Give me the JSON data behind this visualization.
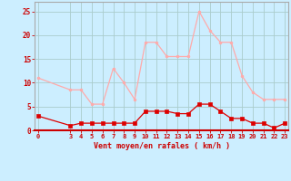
{
  "hours": [
    0,
    3,
    4,
    5,
    6,
    7,
    8,
    9,
    10,
    11,
    12,
    13,
    14,
    15,
    16,
    17,
    18,
    19,
    20,
    21,
    22,
    23
  ],
  "wind_avg": [
    3,
    1,
    1.5,
    1.5,
    1.5,
    1.5,
    1.5,
    1.5,
    4,
    4,
    4,
    3.5,
    3.5,
    5.5,
    5.5,
    4,
    2.5,
    2.5,
    1.5,
    1.5,
    0.5,
    1.5
  ],
  "wind_gust": [
    11,
    8.5,
    8.5,
    5.5,
    5.5,
    13,
    10,
    6.5,
    18.5,
    18.5,
    15.5,
    15.5,
    15.5,
    25,
    21,
    18.5,
    18.5,
    11.5,
    8,
    6.5,
    6.5,
    6.5
  ],
  "avg_color": "#dd0000",
  "gust_color": "#ffaaaa",
  "bg_color": "#cceeff",
  "grid_color": "#aacccc",
  "xlabel": "Vent moyen/en rafales ( km/h )",
  "ylim": [
    0,
    27
  ],
  "yticks": [
    0,
    5,
    10,
    15,
    20,
    25
  ],
  "xticks": [
    0,
    3,
    4,
    5,
    6,
    7,
    8,
    9,
    10,
    11,
    12,
    13,
    14,
    15,
    16,
    17,
    18,
    19,
    20,
    21,
    22,
    23
  ],
  "axis_color": "#cc0000",
  "tick_color": "#cc0000",
  "label_color": "#cc0000",
  "spine_color": "#aaaaaa"
}
